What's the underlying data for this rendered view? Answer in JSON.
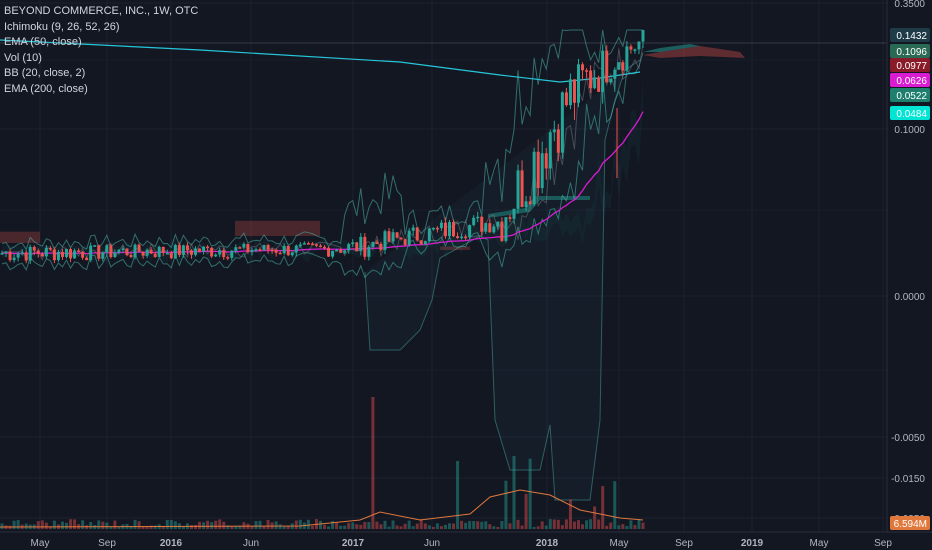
{
  "chart_data": {
    "type": "candlestick",
    "title": "BEYOND COMMERCE, INC., 1W, OTC",
    "indicators": [
      "Ichimoku (9, 26, 52, 26)",
      "EMA (50, close)",
      "Vol (10)",
      "BB (20, close, 2)",
      "EMA (200, close)"
    ],
    "y_axis_ticks": [
      "0.3500",
      "0.1000",
      "0.0000",
      "-0.0050",
      "-0.0150",
      "-0.0350"
    ],
    "x_axis_ticks": [
      "May",
      "Sep",
      "2016",
      "Jun",
      "2017",
      "Jun",
      "2018",
      "May",
      "Sep",
      "2019",
      "May",
      "Sep"
    ],
    "price_tags": [
      {
        "value": "0.1432",
        "color": "#1f3b48"
      },
      {
        "value": "0.1096",
        "color": "#2a6a55"
      },
      {
        "value": "0.0977",
        "color": "#8a1c2a"
      },
      {
        "value": "0.0626",
        "color": "#d91bd2"
      },
      {
        "value": "0.0522",
        "color": "#1f7f6e"
      },
      {
        "value": "0.0484",
        "color": "#00e5d4"
      },
      {
        "value": "6.594M",
        "color": "#e0783c"
      }
    ],
    "segments": [
      {
        "period": "2015-05 to 2017-01",
        "open": 0.019,
        "close": 0.021,
        "low": 0.013,
        "high": 0.028
      },
      {
        "period": "2017-01 to 2017-06",
        "open": 0.021,
        "close": 0.03,
        "low": 0.018,
        "high": 0.042
      },
      {
        "period": "2017-06 to 2017-09",
        "open": 0.03,
        "close": 0.035,
        "low": 0.024,
        "high": 0.047
      },
      {
        "period": "2017-09 to 2017-12",
        "open": 0.035,
        "close": 0.085,
        "low": 0.03,
        "high": 0.095
      },
      {
        "period": "2017-12 to 2018-05",
        "open": 0.085,
        "close": 0.14,
        "low": 0.06,
        "high": 0.15
      }
    ],
    "volume_peak_label": "6.594M",
    "colors": {
      "up": "#26a69a",
      "down": "#ef5350",
      "ema50": "#c2185b",
      "ema200": "#26c6da",
      "bb": "#4db6ac",
      "background": "#131722"
    }
  }
}
